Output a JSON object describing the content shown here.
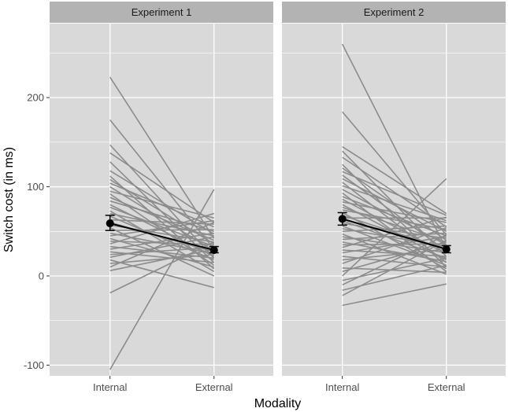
{
  "chart_data": {
    "type": "line",
    "title": "",
    "xlabel": "Modality",
    "ylabel": "Switch cost (in ms)",
    "categories": [
      "Internal",
      "External"
    ],
    "ylim": [
      -112,
      283
    ],
    "yticks": [
      -100,
      0,
      100,
      200
    ],
    "grid": true,
    "colors": {
      "panel_bg": "#d9d9d9",
      "strip_bg": "#b3b3b3",
      "grid": "#ffffff",
      "subject_line": "#8c8c8c",
      "mean": "#000000"
    },
    "panels": [
      {
        "label": "Experiment 1",
        "mean": {
          "internal": 59,
          "external": 29
        },
        "ci": {
          "internal": [
            51,
            68
          ],
          "external": [
            26,
            33
          ]
        },
        "subjects": [
          [
            223,
            42
          ],
          [
            175,
            30
          ],
          [
            147,
            20
          ],
          [
            138,
            60
          ],
          [
            128,
            15
          ],
          [
            118,
            47
          ],
          [
            112,
            8
          ],
          [
            108,
            36
          ],
          [
            104,
            55
          ],
          [
            100,
            28
          ],
          [
            95,
            65
          ],
          [
            92,
            12
          ],
          [
            88,
            40
          ],
          [
            84,
            50
          ],
          [
            80,
            22
          ],
          [
            77,
            33
          ],
          [
            73,
            5
          ],
          [
            70,
            45
          ],
          [
            67,
            18
          ],
          [
            63,
            58
          ],
          [
            60,
            27
          ],
          [
            57,
            38
          ],
          [
            54,
            0
          ],
          [
            51,
            52
          ],
          [
            48,
            25
          ],
          [
            45,
            62
          ],
          [
            42,
            10
          ],
          [
            39,
            35
          ],
          [
            36,
            70
          ],
          [
            33,
            20
          ],
          [
            30,
            48
          ],
          [
            27,
            15
          ],
          [
            24,
            32
          ],
          [
            21,
            44
          ],
          [
            18,
            -13
          ],
          [
            14,
            24
          ],
          [
            10,
            60
          ],
          [
            6,
            30
          ],
          [
            -19,
            38
          ],
          [
            -105,
            97
          ]
        ]
      },
      {
        "label": "Experiment 2",
        "mean": {
          "internal": 64,
          "external": 30
        },
        "ci": {
          "internal": [
            57,
            71
          ],
          "external": [
            26,
            34
          ]
        },
        "subjects": [
          [
            260,
            30
          ],
          [
            184,
            46
          ],
          [
            145,
            70
          ],
          [
            140,
            22
          ],
          [
            133,
            55
          ],
          [
            125,
            10
          ],
          [
            121,
            40
          ],
          [
            117,
            68
          ],
          [
            113,
            28
          ],
          [
            109,
            50
          ],
          [
            105,
            15
          ],
          [
            101,
            62
          ],
          [
            97,
            35
          ],
          [
            93,
            5
          ],
          [
            89,
            45
          ],
          [
            86,
            25
          ],
          [
            83,
            60
          ],
          [
            80,
            18
          ],
          [
            77,
            38
          ],
          [
            74,
            52
          ],
          [
            71,
            8
          ],
          [
            68,
            30
          ],
          [
            65,
            65
          ],
          [
            62,
            20
          ],
          [
            59,
            42
          ],
          [
            56,
            12
          ],
          [
            53,
            33
          ],
          [
            50,
            56
          ],
          [
            47,
            2
          ],
          [
            44,
            26
          ],
          [
            41,
            48
          ],
          [
            38,
            16
          ],
          [
            35,
            36
          ],
          [
            32,
            66
          ],
          [
            29,
            22
          ],
          [
            26,
            44
          ],
          [
            22,
            10
          ],
          [
            18,
            30
          ],
          [
            14,
            54
          ],
          [
            9,
            4
          ],
          [
            5,
            38
          ],
          [
            0,
            109
          ],
          [
            -5,
            20
          ],
          [
            -10,
            46
          ],
          [
            -16,
            12
          ],
          [
            -22,
            40
          ],
          [
            -33,
            -9
          ]
        ]
      }
    ]
  }
}
